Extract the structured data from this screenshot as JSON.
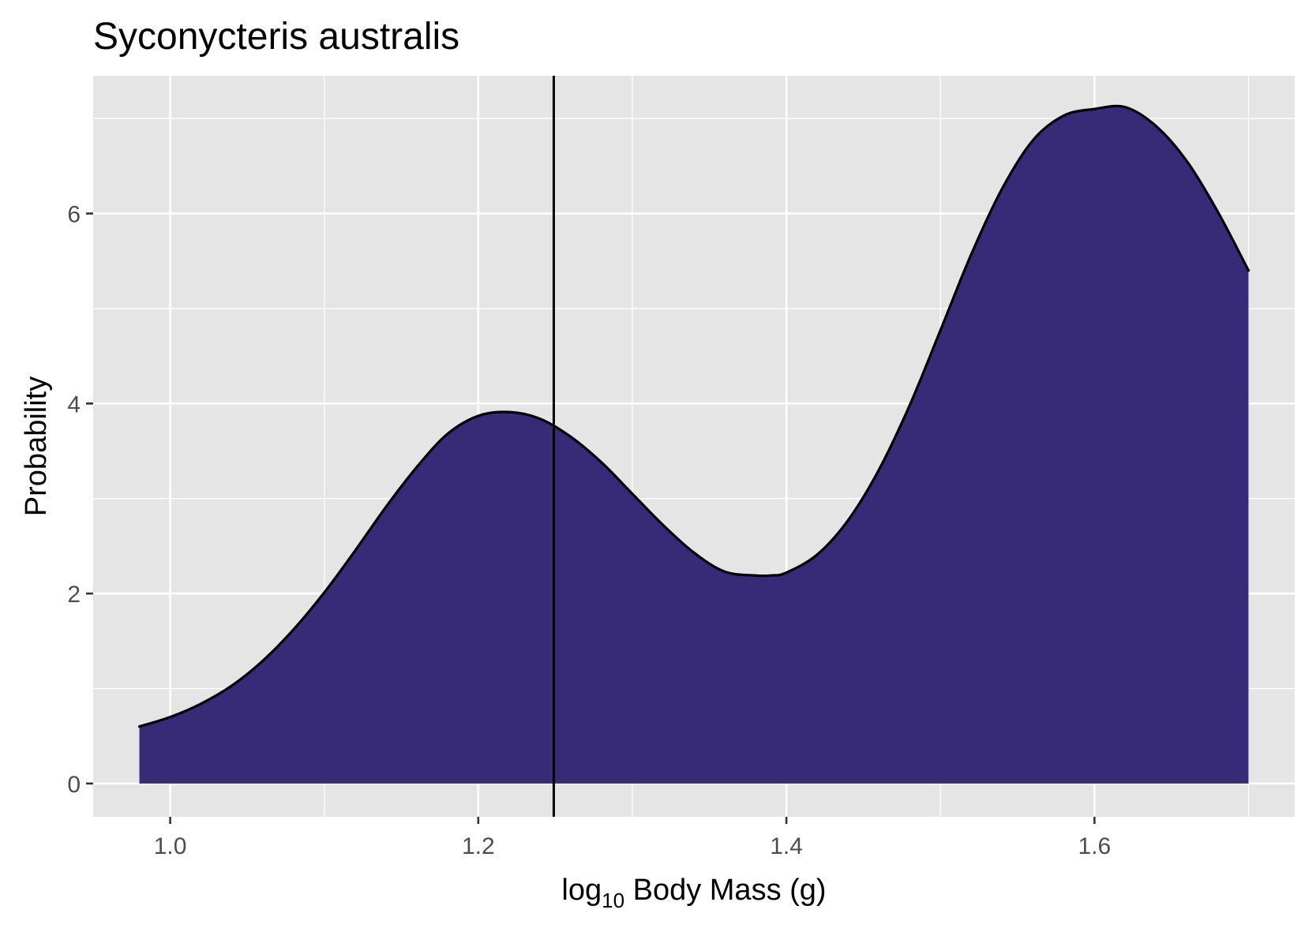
{
  "chart_data": {
    "type": "area",
    "title": "Syconycteris australis",
    "xlabel": {
      "prefix": "log",
      "subscript": "10",
      "suffix": " Body Mass (g)"
    },
    "ylabel": "Probability",
    "xlim": [
      0.95,
      1.73
    ],
    "ylim": [
      -0.35,
      7.45
    ],
    "x_ticks": [
      1.0,
      1.2,
      1.4,
      1.6
    ],
    "x_tick_labels": [
      "1.0",
      "1.2",
      "1.4",
      "1.6"
    ],
    "y_ticks": [
      0,
      2,
      4,
      6
    ],
    "y_tick_labels": [
      "0",
      "2",
      "4",
      "6"
    ],
    "x_minor_grid": [
      1.1,
      1.3,
      1.5,
      1.7
    ],
    "y_minor_grid": [
      1,
      3,
      5,
      7
    ],
    "grid": true,
    "legend": "none",
    "vline_x": 1.249,
    "series": [
      {
        "x": [
          0.98,
          1.0,
          1.02,
          1.04,
          1.06,
          1.08,
          1.1,
          1.12,
          1.14,
          1.16,
          1.18,
          1.2,
          1.22,
          1.24,
          1.26,
          1.28,
          1.3,
          1.32,
          1.34,
          1.36,
          1.38,
          1.39,
          1.4,
          1.42,
          1.44,
          1.46,
          1.48,
          1.5,
          1.52,
          1.54,
          1.56,
          1.58,
          1.6,
          1.62,
          1.64,
          1.66,
          1.68,
          1.7
        ],
        "y": [
          0.6,
          0.7,
          0.84,
          1.03,
          1.29,
          1.62,
          2.01,
          2.45,
          2.91,
          3.33,
          3.68,
          3.87,
          3.91,
          3.84,
          3.65,
          3.38,
          3.05,
          2.72,
          2.43,
          2.23,
          2.19,
          2.19,
          2.22,
          2.41,
          2.77,
          3.3,
          3.98,
          4.77,
          5.57,
          6.26,
          6.77,
          7.03,
          7.1,
          7.12,
          6.92,
          6.55,
          6.02,
          5.4
        ]
      }
    ]
  },
  "colors": {
    "panel_background": "#e5e5e5",
    "grid_line": "#ffffff",
    "area_fill": "#372a77",
    "outline": "#000000",
    "tick_label": "#4d4d4d"
  }
}
